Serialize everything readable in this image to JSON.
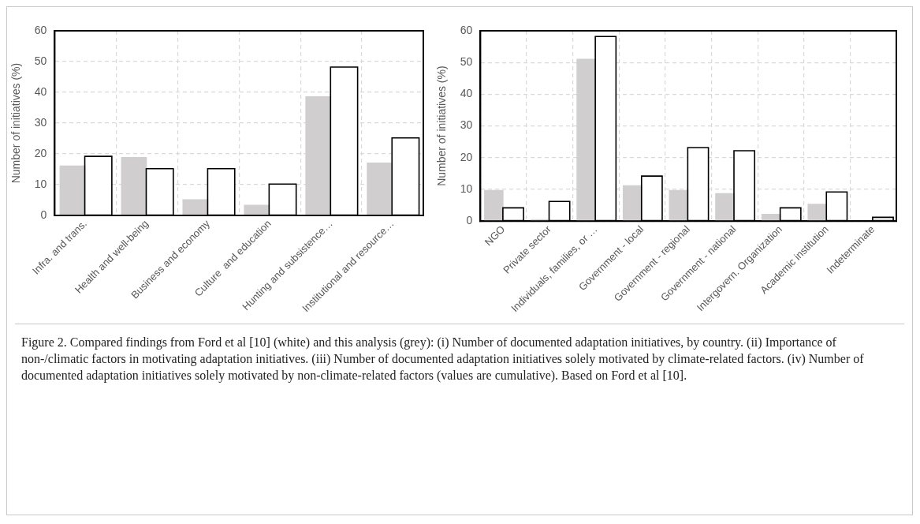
{
  "chart_data": [
    {
      "type": "bar",
      "ylabel": "Number of initiatives (%)",
      "categories": [
        "Infra. and trans.",
        "Health and well-being",
        "Business and economy",
        "Culture  and education",
        "Hunting and subsistence…",
        "Institutional and resource…"
      ],
      "series": [
        {
          "color": "#d0cece",
          "values": [
            16.2,
            19,
            5.3,
            3.5,
            38.7,
            17.2
          ]
        },
        {
          "color": "#ffffff",
          "values": [
            19,
            15,
            15,
            10,
            48,
            25
          ]
        }
      ],
      "ylim": [
        0,
        60
      ],
      "yticks": [
        0,
        10,
        20,
        30,
        40,
        50,
        60
      ],
      "grid": true,
      "annotations": [
        "Figure 2. Compared findings from Ford et al [10] (white) and this analysis (grey): (i) Number of documented adaptation initiatives, by country. (ii) Importance of non-/climatic factors in motivating adaptation initiatives. (iii) Number of documented adaptation initiatives solely motivated by climate-related factors. (iv) Number of documented adaptation initiatives solely motivated by non-climate-related factors (values are cumulative). Based on Ford et al [10]."
      ]
    },
    {
      "type": "bar",
      "ylabel": "Number of initiatives (%)",
      "categories": [
        "NGO",
        "Private sector",
        "Individuals, families, or …",
        "Government - local",
        "Government - regional",
        "Government - national",
        "Intergovern. Organization",
        "Academic institution",
        "Indeterminate"
      ],
      "series": [
        {
          "color": "#d0cece",
          "values": [
            9.8,
            0.6,
            51.2,
            11.3,
            9.8,
            8.8,
            2.3,
            5.5,
            0
          ]
        },
        {
          "color": "#ffffff",
          "values": [
            4,
            6,
            58,
            14,
            23,
            22,
            4,
            9,
            1
          ]
        }
      ],
      "ylim": [
        0,
        60
      ],
      "yticks": [
        0,
        10,
        20,
        30,
        40,
        50,
        60
      ],
      "grid": true
    }
  ]
}
